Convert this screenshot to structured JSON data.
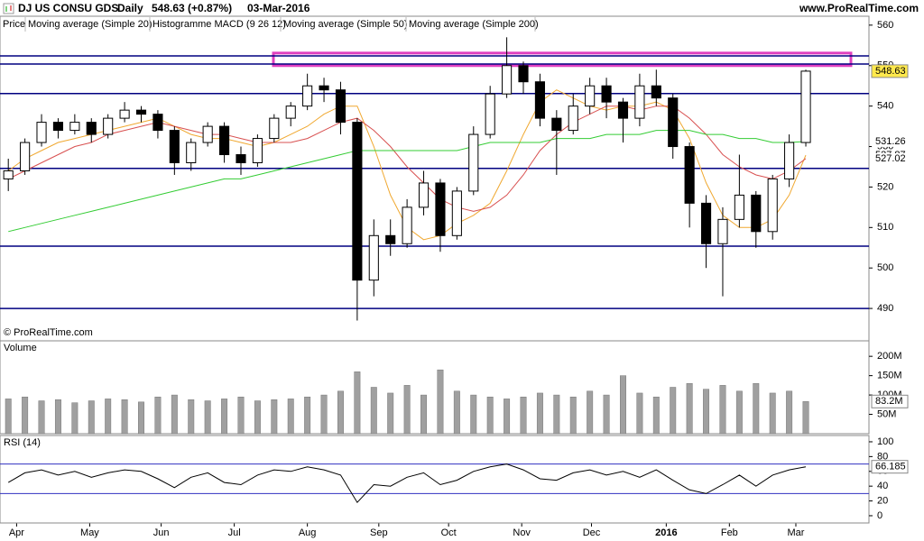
{
  "header": {
    "title": "DJ US CONSU GDS",
    "period": "Daily",
    "quote": "548.63 (+0.87%)",
    "date": "03-Mar-2016",
    "site": "www.ProRealTime.com"
  },
  "chart_data": [
    {
      "type": "candlestick",
      "price_label": "Price",
      "macd_label": "Histogramme MACD (9 26 12)",
      "annotation": "© ProRealTime.com",
      "xlim": [
        -0.5,
        51.8
      ],
      "ylim": [
        482,
        562.2
      ],
      "yticks": [
        490,
        500,
        510,
        520,
        530,
        540,
        550,
        560
      ],
      "open": [
        522,
        524,
        531,
        536,
        534,
        536,
        533,
        537,
        539,
        538,
        534,
        526,
        531,
        535,
        528,
        526,
        532,
        537,
        540,
        545,
        544,
        536,
        497,
        508,
        506,
        515,
        521,
        508,
        519,
        533,
        543,
        550,
        546,
        537,
        534,
        540,
        545,
        541,
        537,
        545,
        542,
        530,
        516,
        506,
        512,
        518,
        509,
        522,
        531
      ],
      "high": [
        527,
        532,
        538,
        537,
        538,
        537,
        538,
        541,
        540,
        539,
        535,
        532,
        536,
        536,
        530,
        533,
        538,
        541,
        548,
        547,
        546,
        537,
        512,
        512,
        517,
        524,
        522,
        520,
        535,
        545,
        557,
        551,
        548,
        539,
        543,
        547,
        547,
        542,
        548,
        549,
        543,
        531,
        518,
        515,
        528,
        519,
        523,
        533,
        549
      ],
      "low": [
        519,
        523,
        530,
        532,
        533,
        531,
        532,
        536,
        536,
        532,
        523,
        524,
        530,
        526,
        523,
        525,
        531,
        535,
        539,
        541,
        533,
        487,
        493,
        503,
        505,
        513,
        504,
        507,
        518,
        532,
        542,
        543,
        535,
        523,
        533,
        538,
        537,
        531,
        535,
        540,
        527,
        510,
        500,
        493,
        510,
        505,
        507,
        520,
        530
      ],
      "close": [
        524,
        531,
        536,
        534,
        536,
        533,
        537,
        539,
        538,
        534,
        526,
        531,
        535,
        528,
        526,
        532,
        537,
        540,
        545,
        544,
        536,
        497,
        508,
        506,
        515,
        521,
        508,
        519,
        533,
        543,
        550,
        546,
        537,
        534,
        540,
        545,
        541,
        537,
        545,
        542,
        530,
        516,
        506,
        512,
        518,
        509,
        522,
        531,
        548.63
      ],
      "up_color": "#ffffff",
      "down_color": "#000000",
      "hlines": [
        552.4,
        550.4,
        543.1,
        524.6,
        505.4,
        490
      ],
      "hline_color": "#000080",
      "zone": [
        550,
        553.1
      ],
      "zone_color": "#e040c0",
      "series": [
        {
          "name": "Moving average (Simple 20)",
          "color": "#f0a830",
          "values": [
            524,
            527,
            529,
            531,
            532,
            533,
            534,
            535,
            536,
            537,
            535,
            533,
            532,
            532,
            531,
            530,
            531,
            533,
            535,
            538,
            540,
            540,
            530,
            518,
            510,
            507,
            508,
            511,
            513,
            516,
            524,
            533,
            541,
            544,
            542,
            540,
            539,
            540,
            540,
            541,
            539,
            532,
            521,
            513,
            510,
            510,
            512,
            518,
            527.87
          ]
        },
        {
          "name": "Moving average (Simple 50)",
          "color": "#d85050",
          "values": [
            522,
            524,
            526,
            528,
            530,
            531,
            533,
            534,
            535,
            536,
            535,
            534,
            533,
            533,
            532,
            531,
            531,
            531,
            532,
            534,
            536,
            537,
            534,
            530,
            525,
            521,
            517,
            515,
            514,
            515,
            518,
            523,
            529,
            533,
            536,
            538,
            540,
            540,
            539,
            540,
            540,
            537,
            533,
            528,
            525,
            523,
            522,
            524,
            527.02
          ]
        },
        {
          "name": "Moving average (Simple 200)",
          "color": "#33cc33",
          "values": [
            509,
            510,
            511,
            512,
            513,
            514,
            515,
            516,
            517,
            518,
            519,
            520,
            521,
            522,
            522,
            523,
            524,
            525,
            526,
            527,
            528,
            529,
            529,
            529,
            529,
            529,
            529,
            529,
            530,
            531,
            531,
            531,
            531,
            532,
            532,
            532,
            533,
            533,
            533,
            534,
            534,
            534,
            533,
            533,
            532,
            532,
            531,
            531,
            531.26
          ]
        }
      ]
    },
    {
      "type": "bar",
      "title": "Volume",
      "color": "#a0a0a0",
      "xlim": [
        -0.5,
        51.8
      ],
      "ylim": [
        0,
        240000000
      ],
      "yticks": [
        {
          "value": 50000000,
          "label": "50M"
        },
        {
          "value": 100000000,
          "label": "100M"
        },
        {
          "value": 150000000,
          "label": "150M"
        },
        {
          "value": 200000000,
          "label": "200M"
        }
      ],
      "values": [
        90000000,
        95000000,
        85000000,
        88000000,
        80000000,
        85000000,
        90000000,
        88000000,
        82000000,
        95000000,
        100000000,
        88000000,
        85000000,
        90000000,
        95000000,
        85000000,
        88000000,
        90000000,
        95000000,
        100000000,
        110000000,
        160000000,
        120000000,
        105000000,
        125000000,
        100000000,
        165000000,
        110000000,
        100000000,
        95000000,
        90000000,
        95000000,
        105000000,
        100000000,
        95000000,
        110000000,
        100000000,
        150000000,
        105000000,
        95000000,
        120000000,
        130000000,
        115000000,
        125000000,
        110000000,
        130000000,
        105000000,
        110000000,
        83200000
      ],
      "last_label": "83.2M"
    },
    {
      "type": "line",
      "title": "RSI (14)",
      "color": "#000000",
      "xlim": [
        -0.5,
        51.8
      ],
      "ylim": [
        -9.8,
        108.5
      ],
      "yticks": [
        0,
        20,
        40,
        60,
        80,
        100
      ],
      "levels": [
        70,
        30
      ],
      "level_color": "#3030c0",
      "values": [
        45,
        58,
        62,
        55,
        60,
        52,
        58,
        62,
        60,
        50,
        38,
        52,
        58,
        45,
        42,
        55,
        62,
        60,
        66,
        62,
        55,
        18,
        42,
        40,
        52,
        58,
        42,
        48,
        60,
        66,
        70,
        62,
        50,
        48,
        58,
        62,
        55,
        60,
        52,
        62,
        48,
        35,
        30,
        42,
        55,
        40,
        55,
        62,
        66.185
      ],
      "xticks": [
        {
          "value": 0.5,
          "label": "Apr"
        },
        {
          "value": 4.9,
          "label": "May"
        },
        {
          "value": 9.2,
          "label": "Jun"
        },
        {
          "value": 13.6,
          "label": "Jul"
        },
        {
          "value": 18,
          "label": "Aug"
        },
        {
          "value": 22.3,
          "label": "Sep"
        },
        {
          "value": 26.5,
          "label": "Oct"
        },
        {
          "value": 30.9,
          "label": "Nov"
        },
        {
          "value": 35.1,
          "label": "Dec"
        },
        {
          "value": 39.6,
          "label": "2016"
        },
        {
          "value": 43.4,
          "label": "Feb"
        },
        {
          "value": 47.4,
          "label": "Mar"
        }
      ]
    }
  ]
}
